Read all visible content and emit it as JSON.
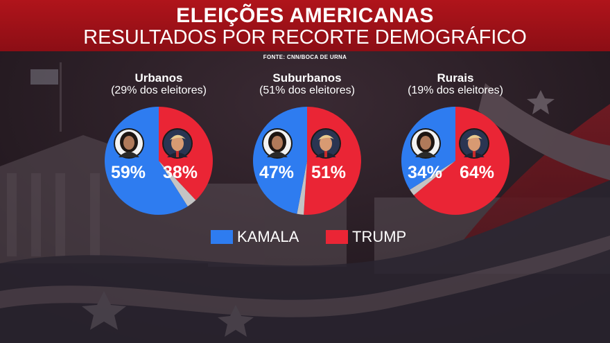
{
  "header": {
    "title": "ELEIÇÕES AMERICANAS",
    "subtitle": "RESULTADOS POR RECORTE DEMOGRÁFICO",
    "source": "FONTE: CNN/BOCA DE URNA"
  },
  "colors": {
    "kamala": "#2e7cf0",
    "trump": "#ea2535",
    "other": "#c4c4c4",
    "header": "#a01219"
  },
  "icons": {
    "kamala": "kamala-portrait-icon",
    "trump": "trump-portrait-icon"
  },
  "chart_data": {
    "type": "pie",
    "title": "RESULTADOS POR RECORTE DEMOGRÁFICO",
    "legend_position": "bottom-center",
    "series_names": [
      "KAMALA",
      "TRUMP"
    ],
    "groups": [
      {
        "name": "Urbanos",
        "share": "(29% dos eleitores)",
        "kamala": 59,
        "trump": 38,
        "kamala_label": "59%",
        "trump_label": "38%"
      },
      {
        "name": "Suburbanos",
        "share": "(51% dos eleitores)",
        "kamala": 47,
        "trump": 51,
        "kamala_label": "47%",
        "trump_label": "51%"
      },
      {
        "name": "Rurais",
        "share": "(19% dos eleitores)",
        "kamala": 34,
        "trump": 64,
        "kamala_label": "34%",
        "trump_label": "64%"
      }
    ]
  },
  "legend": {
    "kamala": "KAMALA",
    "trump": "TRUMP"
  }
}
